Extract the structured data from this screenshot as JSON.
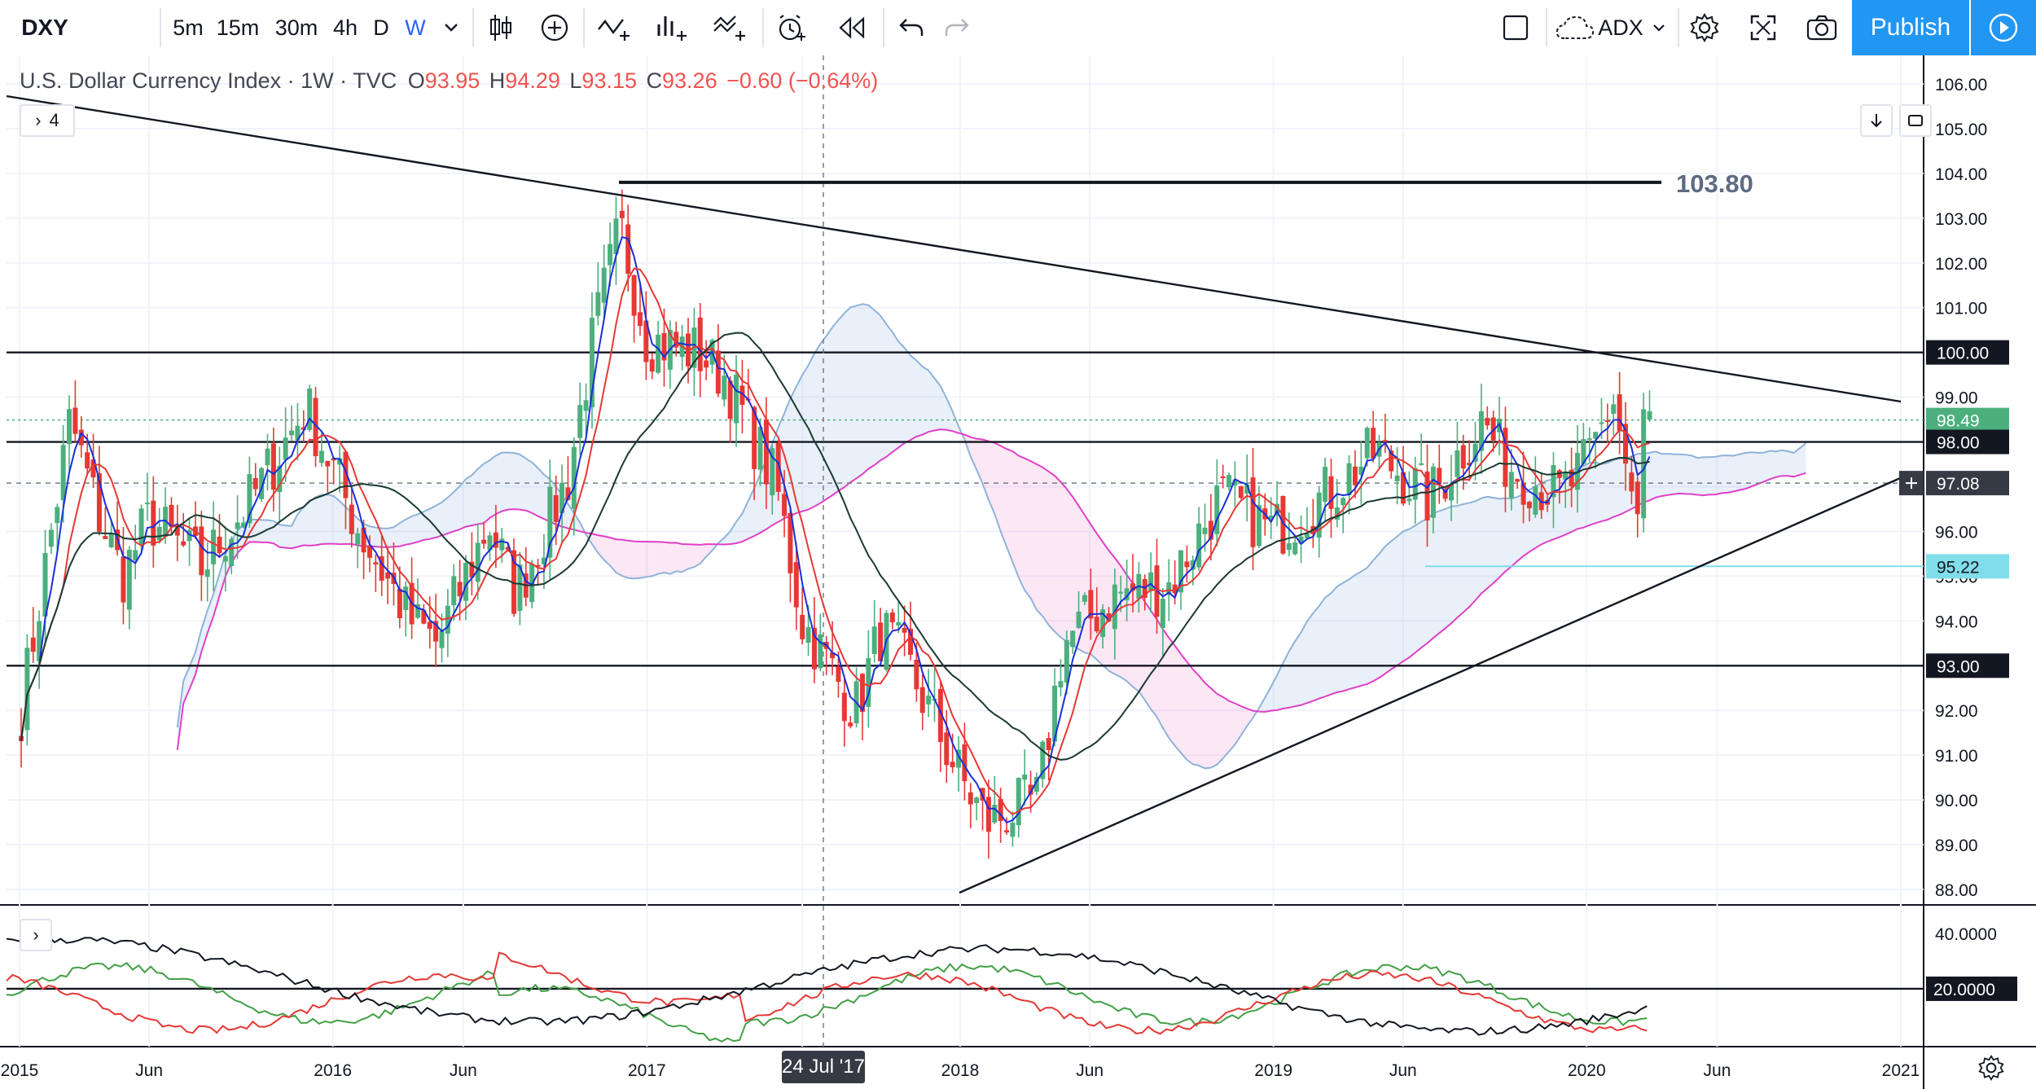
{
  "toolbar": {
    "symbol": "DXY",
    "timeframes": [
      "5m",
      "15m",
      "30m",
      "4h",
      "D",
      "W"
    ],
    "active_timeframe": "W",
    "indicator_name": "ADX",
    "publish_label": "Publish",
    "icons": [
      "chevron-down-icon",
      "candles-icon",
      "add-icon",
      "indicators-icon",
      "financials-icon",
      "templates-icon",
      "alert-icon",
      "replay-icon",
      "undo-icon",
      "redo-icon",
      "layout-icon",
      "cloud-icon",
      "gear-icon",
      "fullscreen-icon",
      "camera-icon",
      "play-icon"
    ]
  },
  "legend": {
    "title": "U.S. Dollar Currency Index",
    "interval": "1W",
    "source": "TVC",
    "o_label": "O",
    "o": "93.95",
    "h_label": "H",
    "h": "94.29",
    "l_label": "L",
    "l": "93.15",
    "c_label": "C",
    "c": "93.26",
    "change": "−0.60 (−0.64%)",
    "collapsed_count": "4"
  },
  "crosshair": {
    "date_label": "24 Jul '17"
  },
  "annotations": {
    "resistance_label": "103.80"
  },
  "price_tags": [
    {
      "value": "100.00",
      "bg": "#131722",
      "fg": "#ffffff"
    },
    {
      "value": "98.49",
      "bg": "#4caf7d",
      "fg": "#ffffff"
    },
    {
      "value": "98.00",
      "bg": "#131722",
      "fg": "#ffffff"
    },
    {
      "value": "97.08",
      "bg": "#363a45",
      "fg": "#ffffff"
    },
    {
      "value": "95.22",
      "bg": "#80deea",
      "fg": "#131722"
    },
    {
      "value": "93.00",
      "bg": "#131722",
      "fg": "#ffffff"
    }
  ],
  "adx_tags": [
    {
      "value": "20.0000",
      "bg": "#131722",
      "fg": "#ffffff"
    }
  ],
  "chart_data": {
    "type": "candlestick",
    "title": "U.S. Dollar Currency Index · 1W · TVC",
    "y_ticks": [
      "106.00",
      "105.00",
      "104.00",
      "103.00",
      "102.00",
      "101.00",
      "100.00",
      "99.00",
      "98.00",
      "97.00",
      "96.00",
      "95.00",
      "94.00",
      "93.00",
      "92.00",
      "91.00",
      "90.00",
      "89.00",
      "88.00"
    ],
    "x_ticks": [
      "2015",
      "Jun",
      "2016",
      "Jun",
      "2017",
      "Jul",
      "2018",
      "Jun",
      "2019",
      "Jun",
      "2020",
      "Jun",
      "2021"
    ],
    "ylim": [
      87.6,
      106.5
    ],
    "grid": true,
    "close_path": [
      [
        "2015-01",
        91.8
      ],
      [
        "2015-03",
        98.5
      ],
      [
        "2015-04",
        96.5
      ],
      [
        "2015-05",
        95.0
      ],
      [
        "2015-06",
        96.3
      ],
      [
        "2015-08",
        95.2
      ],
      [
        "2015-10",
        96.8
      ],
      [
        "2015-12",
        98.8
      ],
      [
        "2016-02",
        96.0
      ],
      [
        "2016-04",
        94.0
      ],
      [
        "2016-05",
        93.5
      ],
      [
        "2016-07",
        96.2
      ],
      [
        "2016-08",
        94.6
      ],
      [
        "2016-10",
        97.2
      ],
      [
        "2016-11",
        100.5
      ],
      [
        "2016-12",
        102.8
      ],
      [
        "2017-01",
        100.3
      ],
      [
        "2017-03",
        100.0
      ],
      [
        "2017-04",
        99.5
      ],
      [
        "2017-06",
        97.0
      ],
      [
        "2017-07",
        94.0
      ],
      [
        "2017-09",
        92.0
      ],
      [
        "2017-10",
        93.8
      ],
      [
        "2017-11",
        93.0
      ],
      [
        "2018-01",
        90.5
      ],
      [
        "2018-02",
        89.5
      ],
      [
        "2018-04",
        90.0
      ],
      [
        "2018-05",
        93.5
      ],
      [
        "2018-07",
        94.6
      ],
      [
        "2018-09",
        94.8
      ],
      [
        "2018-11",
        96.8
      ],
      [
        "2019-01",
        96.0
      ],
      [
        "2019-03",
        96.8
      ],
      [
        "2019-05",
        97.8
      ],
      [
        "2019-07",
        96.7
      ],
      [
        "2019-09",
        98.5
      ],
      [
        "2019-10",
        97.5
      ],
      [
        "2019-12",
        96.8
      ],
      [
        "2020-01",
        97.5
      ],
      [
        "2020-02",
        99.0
      ],
      [
        "2020-03",
        96.0
      ],
      [
        "2020-03",
        98.5
      ]
    ],
    "horizontal_levels": [
      100.0,
      98.0,
      93.0
    ],
    "resistance_level": 103.8,
    "indicator": {
      "name": "ADX",
      "y_ticks": [
        "40.0000",
        "20.0000"
      ],
      "level": 20.0
    }
  }
}
